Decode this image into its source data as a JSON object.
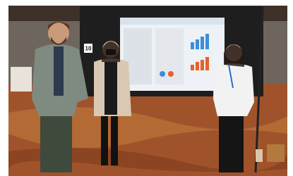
{
  "photo": {
    "sign_number": "10"
  }
}
